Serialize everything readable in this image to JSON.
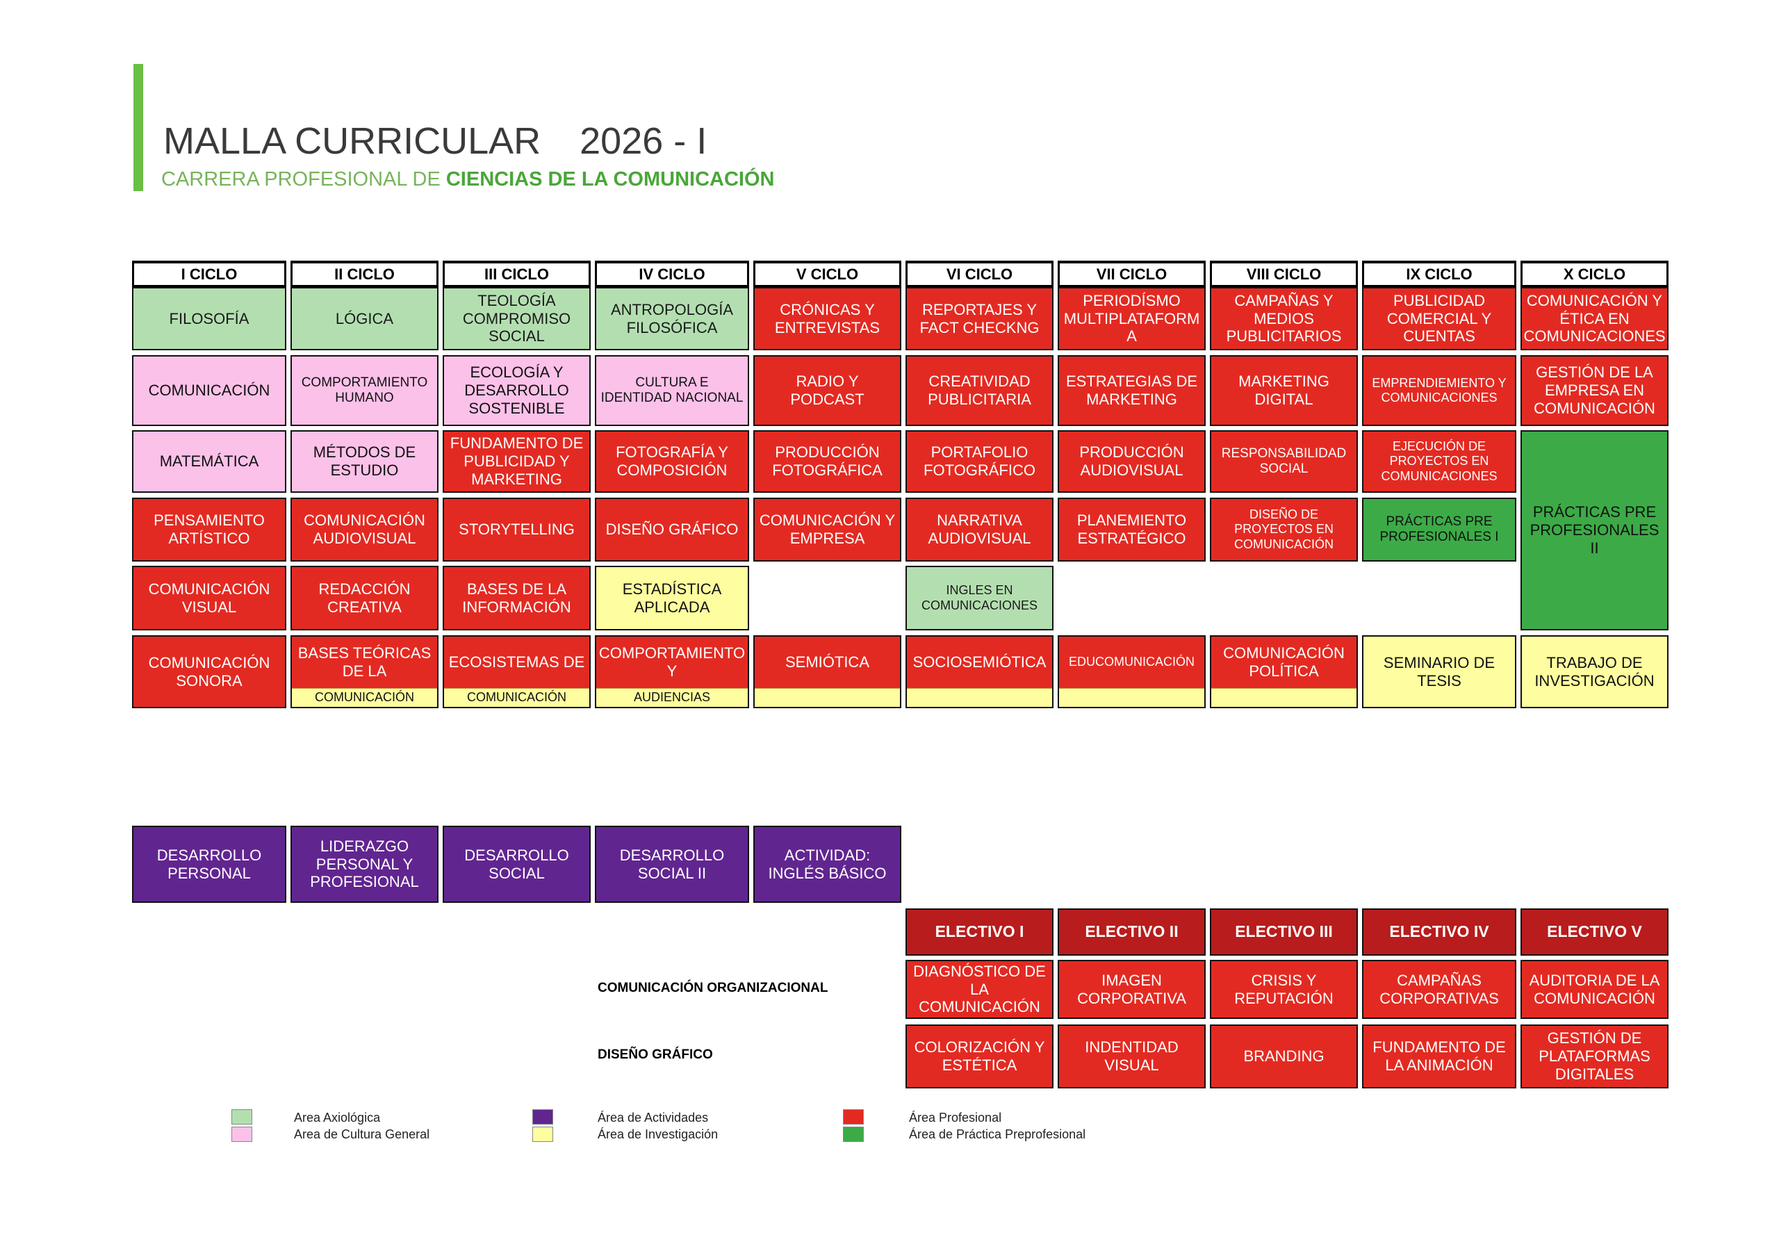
{
  "header": {
    "title": "MALLA CURRICULAR",
    "year": "2026 - I",
    "subtitle_prefix": "CARRERA PROFESIONAL DE ",
    "subtitle_bold": "CIENCIAS DE LA COMUNICACIÓN"
  },
  "cycles": [
    "I CICLO",
    "II CICLO",
    "III CICLO",
    "IV CICLO",
    "V CICLO",
    "VI CICLO",
    "VII CICLO",
    "VIII CICLO",
    "IX CICLO",
    "X CICLO"
  ],
  "courses": {
    "c1": [
      "FILOSOFÍA",
      "COMUNICACIÓN",
      "MATEMÁTICA",
      "PENSAMIENTO ARTÍSTICO",
      "COMUNICACIÓN VISUAL",
      "COMUNICACIÓN SONORA"
    ],
    "c2": [
      "LÓGICA",
      "COMPORTAMIENTO HUMANO",
      "MÉTODOS DE ESTUDIO",
      "COMUNICACIÓN AUDIOVISUAL",
      "REDACCIÓN CREATIVA",
      "BASES TEÓRICAS DE LA",
      "COMUNICACIÓN"
    ],
    "c3": [
      "TEOLOGÍA COMPROMISO SOCIAL",
      "ECOLOGÍA Y DESARROLLO SOSTENIBLE",
      "FUNDAMENTO DE PUBLICIDAD Y MARKETING",
      "STORYTELLING",
      "BASES DE LA INFORMACIÓN",
      "ECOSISTEMAS DE",
      "COMUNICACIÓN"
    ],
    "c4": [
      "ANTROPOLOGÍA FILOSÓFICA",
      "CULTURA E IDENTIDAD NACIONAL",
      "FOTOGRAFÍA Y COMPOSICIÓN",
      "DISEÑO GRÁFICO",
      "ESTADÍSTICA APLICADA",
      "COMPORTAMIENTO Y",
      "AUDIENCIAS"
    ],
    "c5": [
      "CRÓNICAS Y ENTREVISTAS",
      "RADIO Y PODCAST",
      "PRODUCCIÓN FOTOGRÁFICA",
      "COMUNICACIÓN Y EMPRESA",
      "SEMIÓTICA"
    ],
    "c6": [
      "REPORTAJES Y FACT CHECKNG",
      "CREATIVIDAD PUBLICITARIA",
      "PORTAFOLIO FOTOGRÁFICO",
      "NARRATIVA AUDIOVISUAL",
      "INGLES EN COMUNICACIONES",
      "SOCIOSEMIÓTICA"
    ],
    "c7": [
      "PERIODÍSMO MULTIPLATAFORM A",
      "ESTRATEGIAS DE MARKETING",
      "PRODUCCIÓN AUDIOVISUAL",
      "PLANEMIENTO ESTRATÉGICO",
      "EDUCOMUNICACIÓN"
    ],
    "c8": [
      "CAMPAÑAS Y MEDIOS PUBLICITARIOS",
      "MARKETING DIGITAL",
      "RESPONSABILIDAD SOCIAL",
      "DISEÑO DE PROYECTOS EN COMUNICACIÓN",
      "COMUNICACIÓN POLÍTICA"
    ],
    "c9": [
      "PUBLICIDAD COMERCIAL Y CUENTAS",
      "EMPRENDIEMIENTO Y COMUNICACIONES",
      "EJECUCIÓN DE PROYECTOS EN COMUNICACIONES",
      "PRÁCTICAS PRE PROFESIONALES I",
      "SEMINARIO DE TESIS"
    ],
    "c10": [
      "COMUNICACIÓN Y ÉTICA EN COMUNICACIONES",
      "GESTIÓN DE LA EMPRESA EN COMUNICACIÓN",
      "PRÁCTICAS  PRE PROFESIONALES II",
      "TRABAJO DE INVESTIGACIÓN"
    ]
  },
  "activities": [
    "DESARROLLO PERSONAL",
    "LIDERAZGO PERSONAL Y PROFESIONAL",
    "DESARROLLO SOCIAL",
    "DESARROLLO SOCIAL II",
    "ACTIVIDAD: INGLÉS BÁSICO"
  ],
  "electives": {
    "headers": [
      "ELECTIVO I",
      "ELECTIVO II",
      "ELECTIVO III",
      "ELECTIVO IV",
      "ELECTIVO V"
    ],
    "org_label": "COMUNICACIÓN ORGANIZACIONAL",
    "org": [
      "DIAGNÓSTICO DE LA COMUNICACIÓN",
      "IMAGEN CORPORATIVA",
      "CRISIS Y REPUTACIÓN",
      "CAMPAÑAS CORPORATIVAS",
      "AUDITORIA DE LA COMUNICACIÓN"
    ],
    "design_label": "DISEÑO GRÁFICO",
    "design": [
      "COLORIZACIÓN Y ESTÉTICA",
      "INDENTIDAD VISUAL",
      "BRANDING",
      "FUNDAMENTO DE LA ANIMACIÓN",
      "GESTIÓN DE PLATAFORMAS DIGITALES"
    ]
  },
  "legend": [
    {
      "label": "Area Axiológica",
      "color": "#b3dfb0"
    },
    {
      "label": "Area de Cultura General",
      "color": "#fcc1e9"
    },
    {
      "label": "Área de Actividades",
      "color": "#612590"
    },
    {
      "label": "Área de Investigación",
      "color": "#fefea0"
    },
    {
      "label": "Área Profesional",
      "color": "#e32a22"
    },
    {
      "label": "Área de Práctica Preprofesional",
      "color": "#3cab47"
    }
  ]
}
